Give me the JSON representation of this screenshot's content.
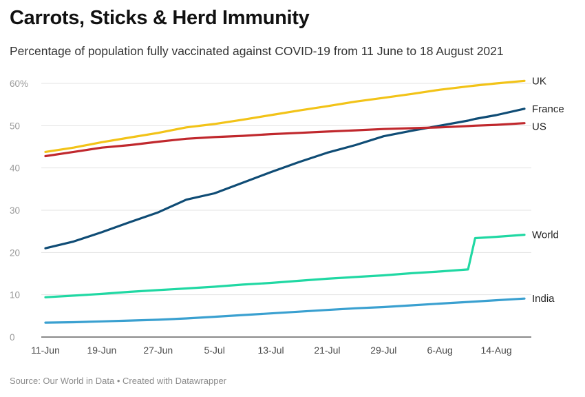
{
  "title": "Carrots, Sticks & Herd Immunity",
  "subtitle": "Percentage of population fully vaccinated against COVID-19 from 11 June to 18 August 2021",
  "source": "Source: Our World in Data • Created with Datawrapper",
  "chart_data": {
    "type": "line",
    "x_dates": [
      "2021-06-11",
      "2021-06-15",
      "2021-06-19",
      "2021-06-23",
      "2021-06-27",
      "2021-07-01",
      "2021-07-05",
      "2021-07-09",
      "2021-07-13",
      "2021-07-17",
      "2021-07-21",
      "2021-07-25",
      "2021-07-29",
      "2021-08-02",
      "2021-08-06",
      "2021-08-10",
      "2021-08-11",
      "2021-08-14",
      "2021-08-18"
    ],
    "x_ticks": [
      "11-Jun",
      "19-Jun",
      "27-Jun",
      "5-Jul",
      "13-Jul",
      "21-Jul",
      "29-Jul",
      "6-Aug",
      "14-Aug"
    ],
    "x_tick_dates": [
      "2021-06-11",
      "2021-06-19",
      "2021-06-27",
      "2021-07-05",
      "2021-07-13",
      "2021-07-21",
      "2021-07-29",
      "2021-08-06",
      "2021-08-14"
    ],
    "y_ticks": [
      "60%",
      "50",
      "40",
      "30",
      "20",
      "10",
      "0"
    ],
    "y_tick_values": [
      60,
      50,
      40,
      30,
      20,
      10,
      0
    ],
    "ylim": [
      0,
      60
    ],
    "grid": true,
    "series": [
      {
        "name": "UK",
        "color": "#f2c318",
        "values": [
          43.8,
          44.8,
          46.1,
          47.2,
          48.3,
          49.6,
          50.4,
          51.4,
          52.5,
          53.6,
          54.6,
          55.7,
          56.6,
          57.5,
          58.5,
          59.3,
          59.5,
          60.0,
          60.6
        ]
      },
      {
        "name": "France",
        "color": "#0f4c75",
        "values": [
          21.0,
          22.6,
          24.8,
          27.2,
          29.5,
          32.5,
          34.0,
          36.5,
          39.0,
          41.4,
          43.6,
          45.4,
          47.5,
          48.8,
          50.0,
          51.2,
          51.6,
          52.5,
          54.0
        ]
      },
      {
        "name": "US",
        "color": "#c0282d",
        "values": [
          42.8,
          43.8,
          44.8,
          45.4,
          46.2,
          46.9,
          47.3,
          47.6,
          48.0,
          48.3,
          48.6,
          48.9,
          49.2,
          49.4,
          49.6,
          49.9,
          50.0,
          50.2,
          50.6
        ]
      },
      {
        "name": "World",
        "color": "#20d8a3",
        "values": [
          9.4,
          9.8,
          10.2,
          10.7,
          11.1,
          11.5,
          11.9,
          12.4,
          12.8,
          13.3,
          13.8,
          14.2,
          14.6,
          15.1,
          15.5,
          16.0,
          23.4,
          23.7,
          24.2
        ]
      },
      {
        "name": "India",
        "color": "#3aa0d0",
        "values": [
          3.4,
          3.5,
          3.7,
          3.9,
          4.1,
          4.4,
          4.8,
          5.2,
          5.6,
          6.0,
          6.4,
          6.8,
          7.1,
          7.5,
          7.9,
          8.3,
          8.4,
          8.7,
          9.1
        ]
      }
    ]
  }
}
